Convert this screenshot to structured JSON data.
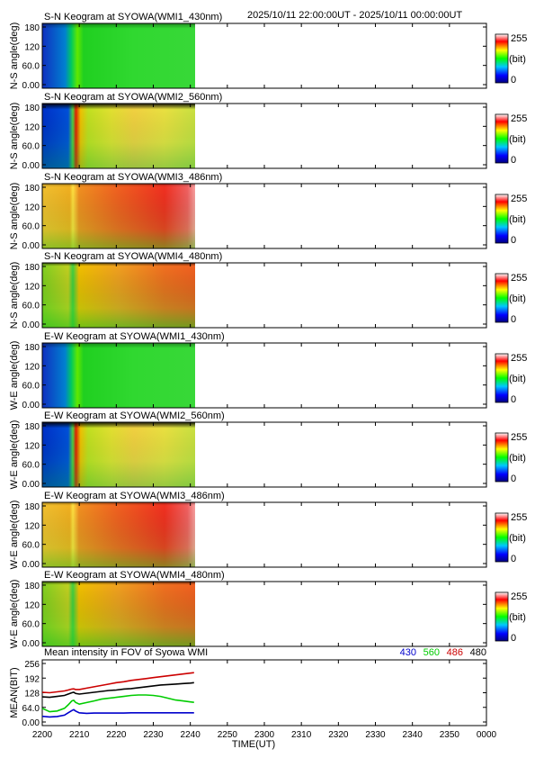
{
  "header": {
    "time_range": "2025/10/11 22:00:00UT - 2025/10/11 00:00:00UT"
  },
  "panels": [
    {
      "title": "S-N Keogram at SYOWA(WMI1_430nm)",
      "ylabel": "N-S angle(deg)",
      "style": "green"
    },
    {
      "title": "S-N Keogram at SYOWA(WMI2_560nm)",
      "ylabel": "N-S angle(deg)",
      "style": "yellow"
    },
    {
      "title": "S-N Keogram at SYOWA(WMI3_486nm)",
      "ylabel": "N-S angle(deg)",
      "style": "red"
    },
    {
      "title": "S-N Keogram at SYOWA(WMI4_480nm)",
      "ylabel": "N-S angle(deg)",
      "style": "orange"
    },
    {
      "title": "E-W Keogram at SYOWA(WMI1_430nm)",
      "ylabel": "W-E angle(deg)",
      "style": "green"
    },
    {
      "title": "E-W Keogram at SYOWA(WMI2_560nm)",
      "ylabel": "W-E angle(deg)",
      "style": "yellow"
    },
    {
      "title": "E-W Keogram at SYOWA(WMI3_486nm)",
      "ylabel": "W-E angle(deg)",
      "style": "red"
    },
    {
      "title": "E-W Keogram at SYOWA(WMI4_480nm)",
      "ylabel": "W-E angle(deg)",
      "style": "orange"
    }
  ],
  "keogram_yticks": [
    "180",
    "120",
    "60.0",
    "0.00"
  ],
  "colorbar": {
    "max_label": "255",
    "unit_label": "(bit)",
    "min_label": "0"
  },
  "chart_data": {
    "type": "line",
    "title": "Mean intensity in FOV of Syowa WMI",
    "xlabel": "TIME(UT)",
    "ylabel": "MEAN(BIT)",
    "ylim": [
      0,
      256
    ],
    "yticks": [
      "256",
      "192",
      "128",
      "64.0",
      "0.00"
    ],
    "xticks": [
      "2200",
      "2210",
      "2220",
      "2230",
      "2240",
      "2250",
      "2300",
      "2310",
      "2320",
      "2330",
      "2340",
      "2350",
      "0000"
    ],
    "x_minutes_span": 120,
    "x": [
      0,
      2,
      4,
      6,
      7,
      8,
      8.5,
      9,
      10,
      12,
      14,
      16,
      18,
      20,
      22,
      24,
      26,
      28,
      30,
      32,
      34,
      36,
      38,
      40,
      41
    ],
    "series": [
      {
        "name": "430",
        "color": "#0000cc",
        "values": [
          25,
          22,
          24,
          30,
          40,
          50,
          54,
          48,
          40,
          38,
          39,
          39,
          39,
          39,
          39,
          40,
          40,
          40,
          40,
          40,
          40,
          40,
          40,
          40,
          40
        ]
      },
      {
        "name": "560",
        "color": "#00cc00",
        "values": [
          60,
          45,
          48,
          60,
          75,
          92,
          95,
          86,
          78,
          85,
          92,
          100,
          104,
          108,
          112,
          116,
          118,
          118,
          116,
          112,
          104,
          96,
          92,
          88,
          86
        ]
      },
      {
        "name": "486",
        "color": "#cc0000",
        "values": [
          130,
          128,
          132,
          136,
          140,
          144,
          145,
          142,
          142,
          148,
          154,
          160,
          166,
          172,
          176,
          182,
          186,
          190,
          194,
          198,
          202,
          206,
          210,
          214,
          216
        ]
      },
      {
        "name": "480",
        "color": "#000000",
        "values": [
          110,
          108,
          112,
          116,
          122,
          128,
          130,
          125,
          122,
          126,
          130,
          134,
          138,
          140,
          144,
          146,
          150,
          154,
          158,
          162,
          164,
          166,
          168,
          170,
          172
        ]
      }
    ]
  }
}
